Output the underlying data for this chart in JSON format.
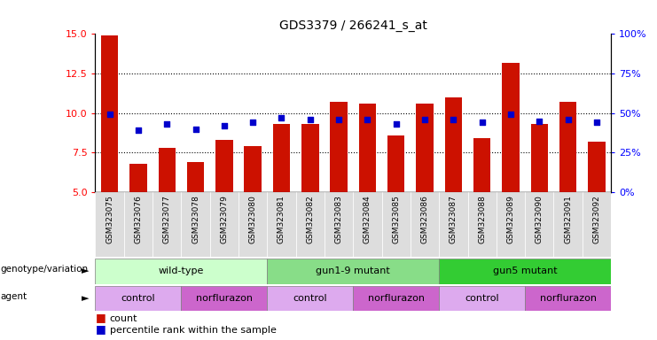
{
  "title": "GDS3379 / 266241_s_at",
  "samples": [
    "GSM323075",
    "GSM323076",
    "GSM323077",
    "GSM323078",
    "GSM323079",
    "GSM323080",
    "GSM323081",
    "GSM323082",
    "GSM323083",
    "GSM323084",
    "GSM323085",
    "GSM323086",
    "GSM323087",
    "GSM323088",
    "GSM323089",
    "GSM323090",
    "GSM323091",
    "GSM323092"
  ],
  "bar_values": [
    14.9,
    6.8,
    7.8,
    6.9,
    8.3,
    7.9,
    9.3,
    9.3,
    10.7,
    10.6,
    8.6,
    10.6,
    11.0,
    8.4,
    13.2,
    9.3,
    10.7,
    8.2
  ],
  "dot_values": [
    49,
    39,
    43,
    40,
    42,
    44,
    47,
    46,
    46,
    46,
    43,
    46,
    46,
    44,
    49,
    45,
    46,
    44
  ],
  "ylim_left": [
    5,
    15
  ],
  "ylim_right": [
    0,
    100
  ],
  "yticks_left": [
    5,
    7.5,
    10,
    12.5,
    15
  ],
  "yticks_right": [
    0,
    25,
    50,
    75,
    100
  ],
  "bar_color": "#cc1100",
  "dot_color": "#0000cc",
  "genotype_groups": [
    {
      "label": "wild-type",
      "start": 0,
      "end": 5,
      "color": "#ccffcc"
    },
    {
      "label": "gun1-9 mutant",
      "start": 6,
      "end": 11,
      "color": "#88dd88"
    },
    {
      "label": "gun5 mutant",
      "start": 12,
      "end": 17,
      "color": "#33cc33"
    }
  ],
  "agent_groups": [
    {
      "label": "control",
      "start": 0,
      "end": 2,
      "color": "#ddaaee"
    },
    {
      "label": "norflurazon",
      "start": 3,
      "end": 5,
      "color": "#cc66cc"
    },
    {
      "label": "control",
      "start": 6,
      "end": 8,
      "color": "#ddaaee"
    },
    {
      "label": "norflurazon",
      "start": 9,
      "end": 11,
      "color": "#cc66cc"
    },
    {
      "label": "control",
      "start": 12,
      "end": 14,
      "color": "#ddaaee"
    },
    {
      "label": "norflurazon",
      "start": 15,
      "end": 17,
      "color": "#cc66cc"
    }
  ]
}
